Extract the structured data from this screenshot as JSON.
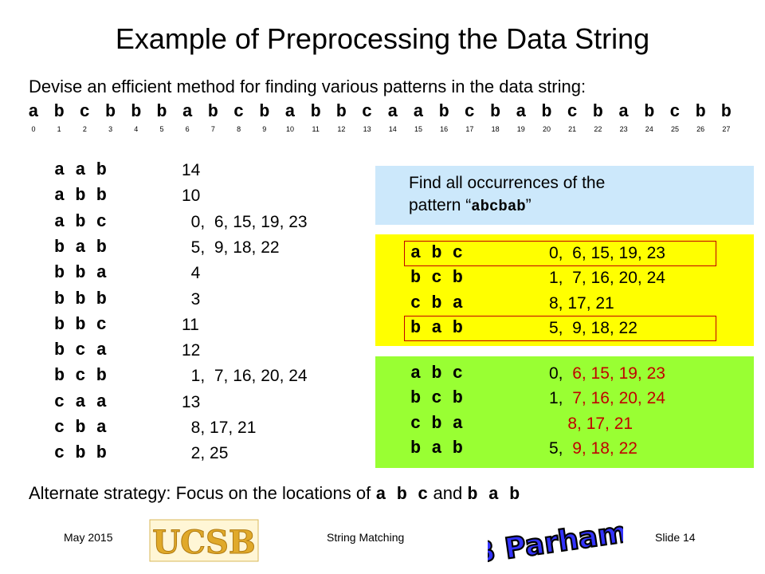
{
  "title": "Example of Preprocessing the Data String",
  "intro": "Devise an efficient method for finding various patterns in the data string:",
  "sequence": [
    "a",
    "b",
    "c",
    "b",
    "b",
    "b",
    "a",
    "b",
    "c",
    "b",
    "a",
    "b",
    "b",
    "c",
    "a",
    "a",
    "b",
    "c",
    "b",
    "a",
    "b",
    "c",
    "b",
    "a",
    "b",
    "c",
    "b",
    "b"
  ],
  "indices": [
    "0",
    "1",
    "2",
    "3",
    "4",
    "5",
    "6",
    "7",
    "8",
    "9",
    "10",
    "11",
    "12",
    "13",
    "14",
    "15",
    "16",
    "17",
    "18",
    "19",
    "20",
    "21",
    "22",
    "23",
    "24",
    "25",
    "26",
    "27"
  ],
  "left_table": [
    {
      "pattern": "a a b",
      "positions": "14"
    },
    {
      "pattern": "a b b",
      "positions": "10"
    },
    {
      "pattern": "a b c",
      "positions": "  0,  6, 15, 19, 23"
    },
    {
      "pattern": "b a b",
      "positions": "  5,  9, 18, 22"
    },
    {
      "pattern": "b b a",
      "positions": "  4"
    },
    {
      "pattern": "b b b",
      "positions": "  3"
    },
    {
      "pattern": "b b c",
      "positions": "11"
    },
    {
      "pattern": "b c a",
      "positions": "12"
    },
    {
      "pattern": "b c b",
      "positions": "  1,  7, 16, 20, 24"
    },
    {
      "pattern": "c a a",
      "positions": "13"
    },
    {
      "pattern": "c b a",
      "positions": "  8, 17, 21"
    },
    {
      "pattern": "c b b",
      "positions": "  2, 25"
    }
  ],
  "find_box": {
    "line1": "Find all occurrences of the",
    "line2_prefix": "pattern “",
    "pattern": "abcbab",
    "line2_suffix": "”"
  },
  "yellow_table": [
    {
      "pattern": "a b c",
      "positions": "0,  6, 15, 19, 23"
    },
    {
      "pattern": "b c b",
      "positions": "1,  7, 16, 20, 24"
    },
    {
      "pattern": "c b a",
      "positions": "8, 17, 21"
    },
    {
      "pattern": "b a b",
      "positions": "5,  9, 18, 22"
    }
  ],
  "green_table": [
    {
      "pattern": "a b c",
      "black": "0,  ",
      "red": "6, 15, 19, 23"
    },
    {
      "pattern": "b c b",
      "black": "1,  ",
      "red": "7, 16, 20, 24"
    },
    {
      "pattern": "c b a",
      "black": "    ",
      "red": "8, 17, 21"
    },
    {
      "pattern": "b a b",
      "black": "5,  ",
      "red": "9, 18, 22"
    }
  ],
  "alternate": {
    "prefix": "Alternate strategy: Focus on the locations of ",
    "p1": "a b c",
    "mid": " and ",
    "p2": "b a b"
  },
  "footer": {
    "date": "May 2015",
    "title": "String Matching",
    "slide": "Slide 14",
    "logo_text": "UCSB",
    "author_logo_text": "B Parhami"
  },
  "colors": {
    "find_box": "#cce8fb",
    "yellow": "#ffff00",
    "green": "#99ff33",
    "red": "#c00000",
    "logo_gold": "#e0a92a"
  }
}
